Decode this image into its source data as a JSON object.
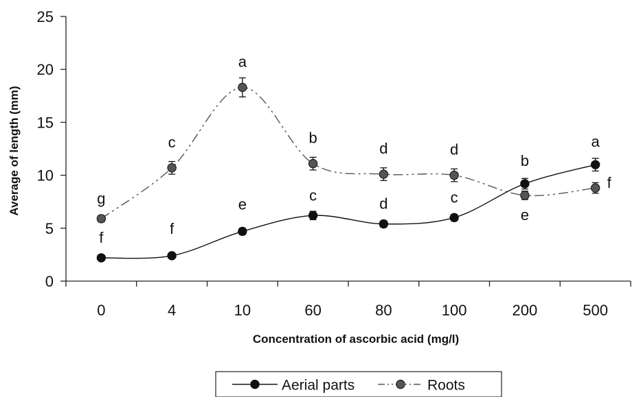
{
  "chart_data": {
    "type": "line",
    "xlabel": "Concentration of ascorbic acid (mg/l)",
    "ylabel": "Average of length (mm)",
    "ylim": [
      0,
      25
    ],
    "yticks": [
      0,
      5,
      10,
      15,
      20,
      25
    ],
    "categories": [
      "0",
      "4",
      "10",
      "60",
      "80",
      "100",
      "200",
      "500"
    ],
    "grid": false,
    "legend_position": "bottom-center",
    "series": [
      {
        "name": "Aerial parts",
        "values": [
          2.2,
          2.4,
          4.7,
          6.2,
          5.4,
          6.0,
          9.2,
          11.0
        ],
        "errors": [
          0.2,
          0.2,
          0.3,
          0.4,
          0.3,
          0.3,
          0.5,
          0.6
        ],
        "letters": [
          "f",
          "f",
          "e",
          "c",
          "d",
          "c",
          "b",
          "a"
        ],
        "color": "#111111",
        "line_style": "solid"
      },
      {
        "name": "Roots",
        "values": [
          5.9,
          10.7,
          18.3,
          11.1,
          10.1,
          10.0,
          8.1,
          8.8
        ],
        "errors": [
          0.3,
          0.6,
          0.9,
          0.6,
          0.6,
          0.6,
          0.4,
          0.5
        ],
        "letters": [
          "g",
          "c",
          "a",
          "b",
          "d",
          "d",
          "e",
          "f"
        ],
        "color": "#555555",
        "line_style": "dash-dot-dot"
      }
    ]
  }
}
